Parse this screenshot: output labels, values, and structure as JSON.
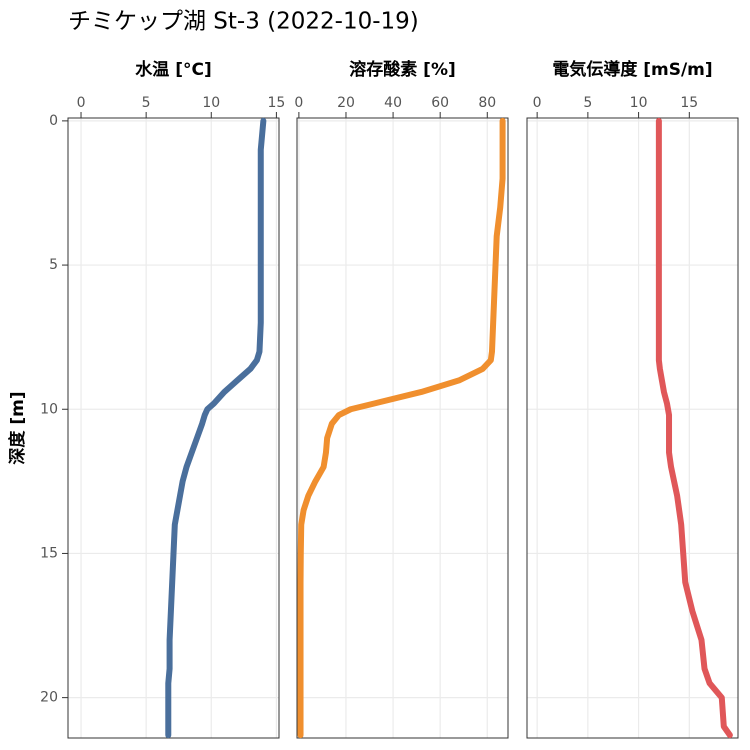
{
  "title": "チミケップ湖 St-3 (2022-10-19)",
  "chart_data": [
    {
      "type": "line",
      "title": "水温 [°C]",
      "ylabel": "深度 [m]",
      "color": "#4a6f9c",
      "grid": true,
      "y_inverted": true,
      "xlim": [
        -1,
        15.2
      ],
      "xticks": [
        0,
        5,
        10,
        15
      ],
      "ylim": [
        -0.1,
        21.4
      ],
      "yticks": [
        0,
        5,
        10,
        15,
        20
      ],
      "y": [
        0,
        1,
        2,
        3,
        4,
        5,
        6,
        7,
        8,
        8.3,
        8.6,
        9,
        9.4,
        9.8,
        10,
        10.2,
        10.5,
        11,
        11.5,
        12,
        12.5,
        13,
        13.5,
        14,
        15,
        16,
        17,
        18,
        19,
        19.5,
        20,
        20.5,
        21,
        21.3
      ],
      "x": [
        14.0,
        13.8,
        13.8,
        13.8,
        13.8,
        13.8,
        13.8,
        13.8,
        13.7,
        13.5,
        13.0,
        12.0,
        11.0,
        10.2,
        9.7,
        9.5,
        9.3,
        8.9,
        8.5,
        8.1,
        7.8,
        7.6,
        7.4,
        7.2,
        7.1,
        7.0,
        6.9,
        6.8,
        6.8,
        6.7,
        6.7,
        6.7,
        6.7,
        6.7
      ]
    },
    {
      "type": "line",
      "title": "溶存酸素 [%]",
      "color": "#f08f2e",
      "grid": true,
      "y_inverted": true,
      "xlim": [
        -0.8,
        88.8
      ],
      "xticks": [
        0,
        20,
        40,
        60,
        80
      ],
      "ylim": [
        -0.1,
        21.4
      ],
      "yticks": [
        0,
        5,
        10,
        15,
        20
      ],
      "y": [
        0,
        1,
        2,
        3,
        4,
        5,
        6,
        7,
        8,
        8.3,
        8.6,
        9,
        9.4,
        9.8,
        10,
        10.2,
        10.5,
        11,
        11.5,
        12,
        12.5,
        13,
        13.5,
        14,
        15,
        16,
        17,
        18,
        19,
        19.5,
        20,
        20.5,
        21,
        21.3
      ],
      "x": [
        86.5,
        86.5,
        86.5,
        85.5,
        84,
        83.5,
        83,
        82.5,
        82,
        81.5,
        78,
        68,
        52,
        32,
        22,
        17,
        14,
        12,
        11.5,
        10.5,
        7,
        4,
        2,
        1,
        0.8,
        0.7,
        0.7,
        0.7,
        0.7,
        0.7,
        0.7,
        0.7,
        0.7,
        0.7
      ]
    },
    {
      "type": "line",
      "title": "電気伝導度 [mS/m]",
      "color": "#e05759",
      "grid": true,
      "y_inverted": true,
      "xlim": [
        -1,
        19.8
      ],
      "xticks": [
        0,
        5,
        10,
        15
      ],
      "ylim": [
        -0.1,
        21.4
      ],
      "yticks": [
        0,
        5,
        10,
        15,
        20
      ],
      "y": [
        0,
        1,
        2,
        3,
        4,
        5,
        6,
        7,
        8,
        8.3,
        8.6,
        9,
        9.4,
        9.8,
        10,
        10.2,
        10.5,
        11,
        11.5,
        12,
        12.5,
        13,
        13.5,
        14,
        15,
        16,
        17,
        18,
        19,
        19.5,
        20,
        20.5,
        21,
        21.3
      ],
      "x": [
        12,
        12,
        12,
        12,
        12,
        12,
        12,
        12,
        12,
        12,
        12.1,
        12.3,
        12.5,
        12.8,
        12.9,
        13.0,
        13.0,
        13.0,
        13.0,
        13.2,
        13.5,
        13.8,
        14.0,
        14.2,
        14.4,
        14.6,
        15.3,
        16.2,
        16.5,
        17.0,
        18.2,
        18.3,
        18.4,
        19.0
      ]
    }
  ]
}
